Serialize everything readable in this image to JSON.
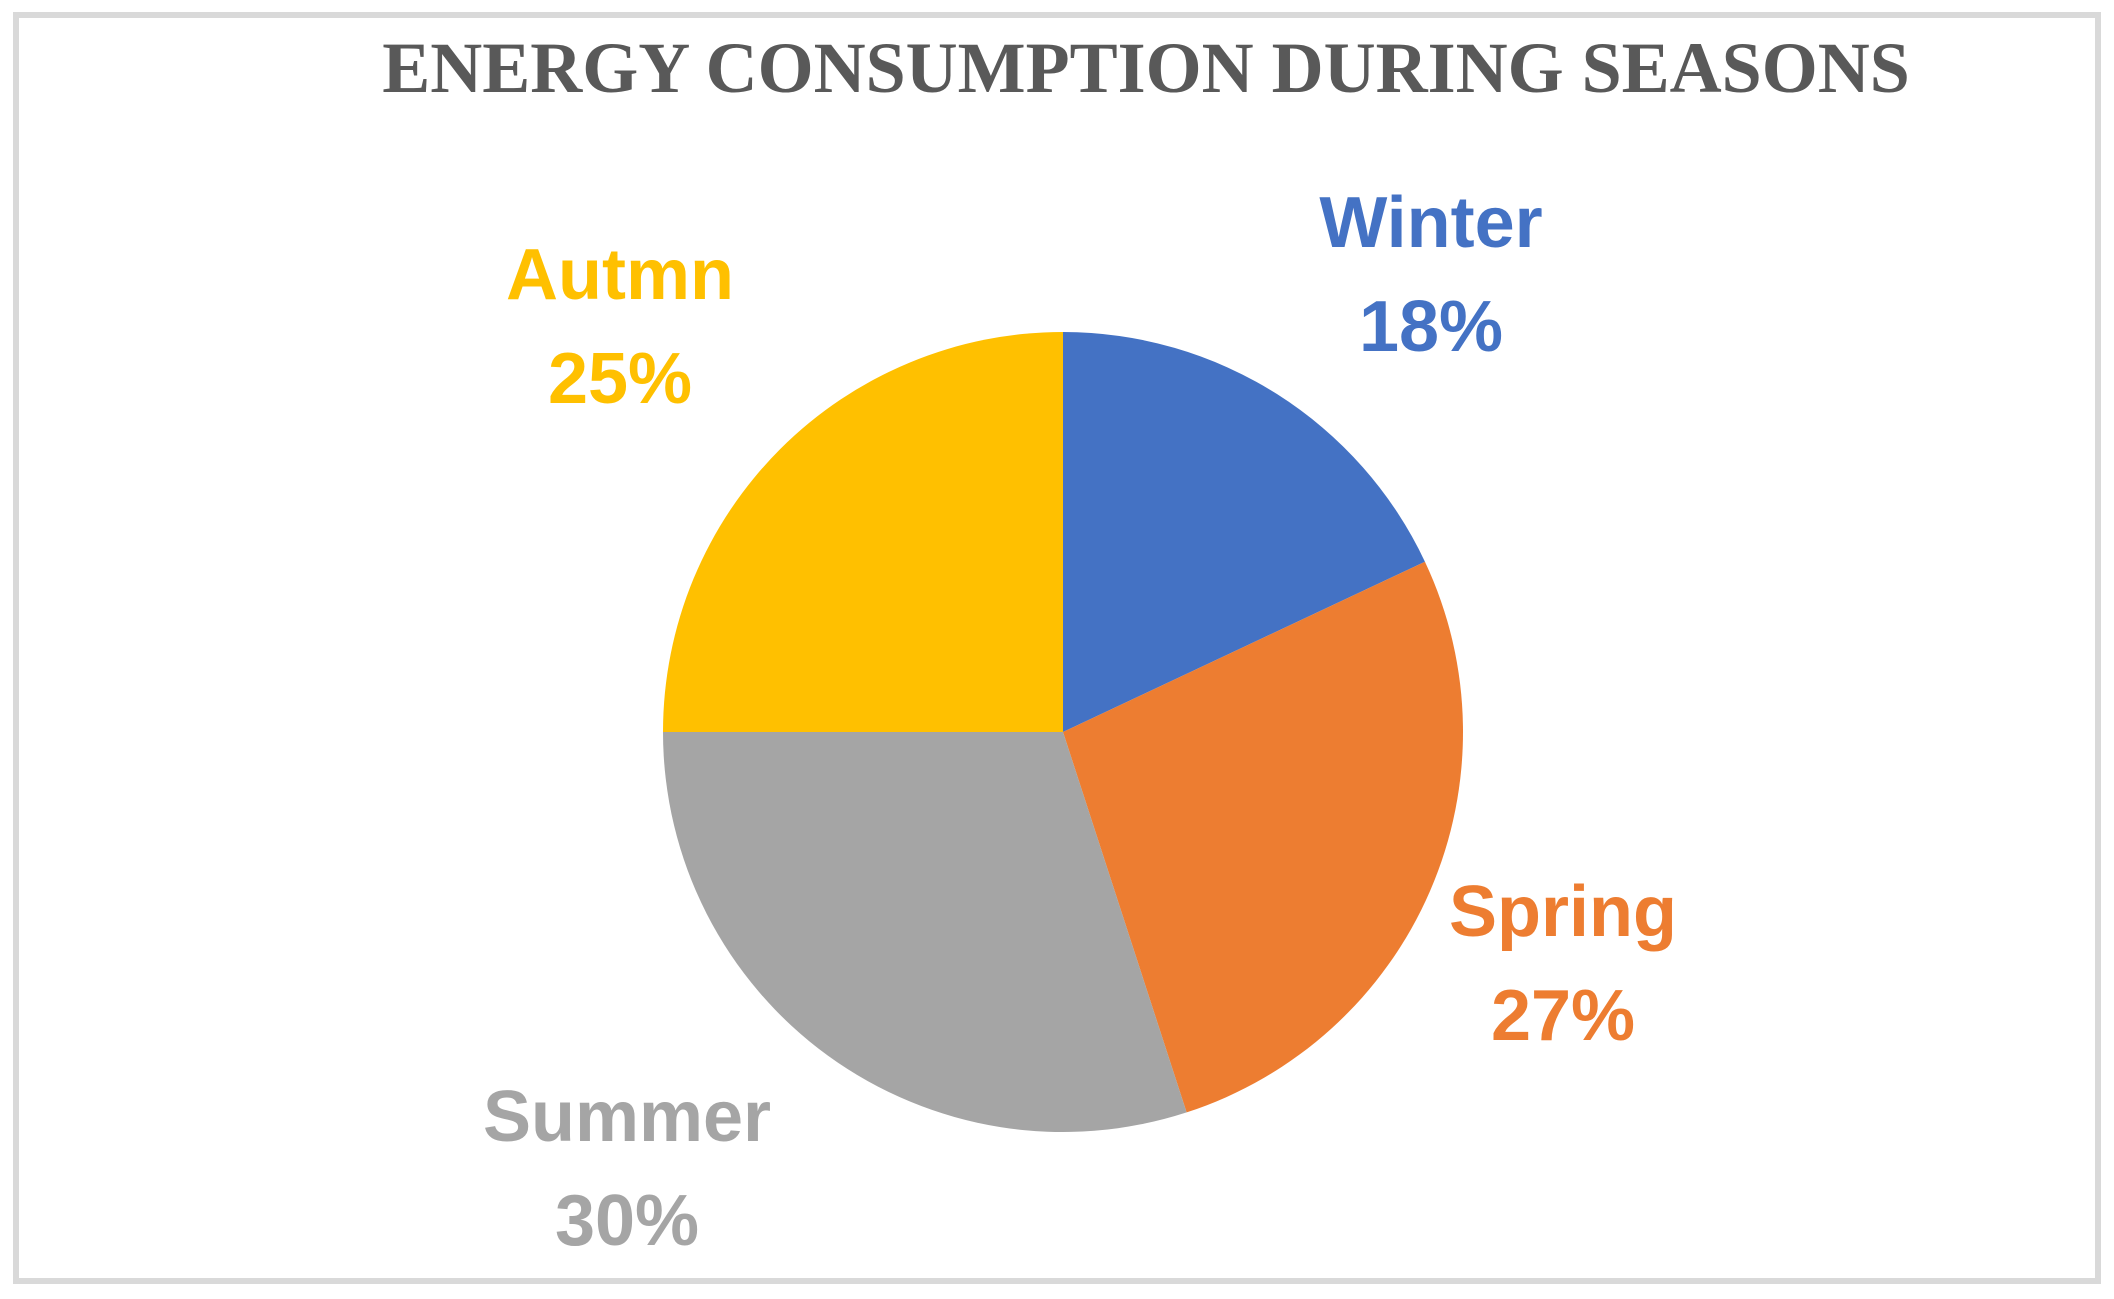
{
  "frame": {
    "border_color": "#D9D9D9"
  },
  "chart_data": {
    "type": "pie",
    "title": "ENERGY CONSUMPTION DURING SEASONS",
    "title_color": "#595959",
    "start_angle_deg": 0,
    "direction": "clockwise",
    "legend": "none",
    "unit": "%",
    "total": 100,
    "slices": [
      {
        "label": "Winter",
        "value": 18,
        "pct_label": "18%",
        "color": "#4472C4"
      },
      {
        "label": "Spring",
        "value": 27,
        "pct_label": "27%",
        "color": "#ED7D31"
      },
      {
        "label": "Summer",
        "value": 30,
        "pct_label": "30%",
        "color": "#A5A5A5"
      },
      {
        "label": "Autmn",
        "value": 25,
        "pct_label": "25%",
        "color": "#FFC000"
      }
    ]
  }
}
